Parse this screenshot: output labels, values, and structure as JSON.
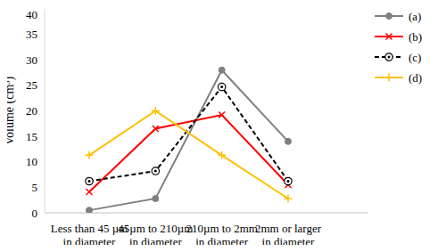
{
  "chart_data": {
    "type": "line",
    "ylabel": "Volume (cm³)",
    "categories": [
      "Less than 45 µm in diameter",
      "45µm to 210µm in diameter",
      "210µm to 2mm in diameter",
      "2mm or larger in diameter"
    ],
    "ylim": [
      0,
      40
    ],
    "yticks": [
      0,
      5,
      10,
      15,
      20,
      25,
      30,
      35,
      40
    ],
    "grid": false,
    "legend": "upper right",
    "series": [
      {
        "name": "(a)",
        "color": "#7f7f7f",
        "marker": "circle",
        "line_style": "solid",
        "values": [
          0.5,
          2.8,
          28,
          14
        ]
      },
      {
        "name": "(b)",
        "color": "#ff0000",
        "marker": "x",
        "line_style": "solid",
        "values": [
          4.1,
          16.5,
          19.2,
          5.5
        ]
      },
      {
        "name": "(c)",
        "color": "#000000",
        "marker": "circle_dot",
        "line_style": "dashed",
        "values": [
          6.2,
          8.2,
          24.7,
          6.2
        ]
      },
      {
        "name": "(d)",
        "color": "#ffc000",
        "marker": "plus",
        "line_style": "solid",
        "values": [
          11.3,
          20,
          11.3,
          2.8
        ]
      }
    ]
  }
}
